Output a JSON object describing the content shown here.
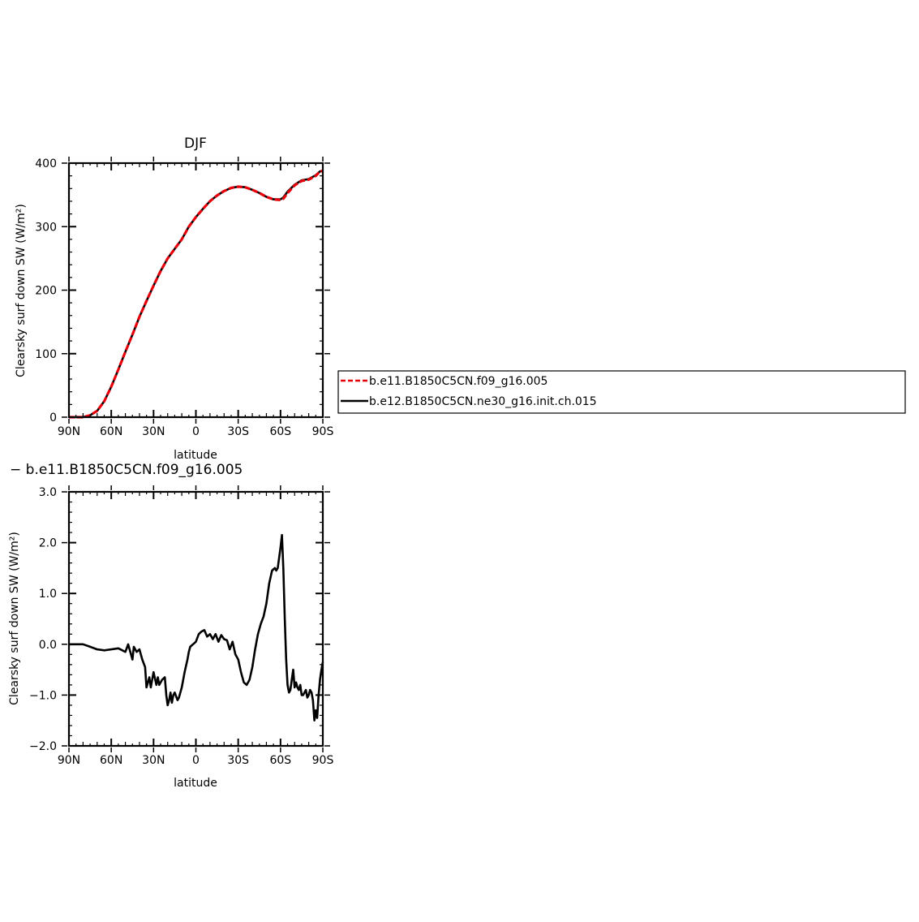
{
  "chart_data": [
    {
      "type": "line",
      "title": "DJF",
      "xlabel": "latitude",
      "ylabel": "Clearsky surf down SW (W/m²)",
      "xticks": [
        "90N",
        "60N",
        "30N",
        "0",
        "30S",
        "60S",
        "90S"
      ],
      "yticks": [
        "0",
        "100",
        "200",
        "300",
        "400"
      ],
      "xlim": [
        90,
        -90
      ],
      "ylim": [
        0,
        400
      ],
      "x": [
        90,
        85,
        80,
        75,
        70,
        65,
        60,
        55,
        50,
        45,
        40,
        35,
        30,
        25,
        20,
        15,
        10,
        5,
        0,
        -5,
        -10,
        -15,
        -20,
        -25,
        -30,
        -35,
        -40,
        -45,
        -50,
        -55,
        -60,
        -62,
        -65,
        -70,
        -75,
        -80,
        -85,
        -88,
        -90
      ],
      "series": [
        {
          "name": "b.e11.B1850C5CN.f09_g16.005",
          "color": "#e8000b",
          "dash": "dashed",
          "values": [
            0,
            0,
            0,
            3,
            10,
            25,
            48,
            75,
            103,
            130,
            158,
            183,
            207,
            230,
            250,
            265,
            280,
            300,
            315,
            328,
            340,
            349,
            356,
            361,
            363,
            362,
            358,
            353,
            347,
            343,
            342,
            344,
            353,
            365,
            372,
            374,
            380,
            387,
            388
          ]
        },
        {
          "name": "b.e12.B1850C5CN.ne30_g16.init.ch.015",
          "color": "#000000",
          "dash": "solid",
          "values": [
            0,
            0,
            0,
            3,
            10,
            25,
            48,
            75,
            103,
            130,
            158,
            183,
            207,
            230,
            250,
            265,
            280,
            300,
            315,
            328,
            340,
            349,
            356,
            361,
            363,
            362,
            358,
            353,
            347,
            343,
            343,
            346,
            355,
            366,
            373,
            375,
            381,
            387,
            388
          ]
        }
      ]
    },
    {
      "type": "line",
      "title": "− b.e11.B1850C5CN.f09_g16.005",
      "xlabel": "latitude",
      "ylabel": "Clearsky surf down SW (W/m²)",
      "xticks": [
        "90N",
        "60N",
        "30N",
        "0",
        "30S",
        "60S",
        "90S"
      ],
      "yticks": [
        "−2.0",
        "−1.0",
        "0.0",
        "1.0",
        "2.0",
        "3.0"
      ],
      "xlim": [
        90,
        -90
      ],
      "ylim": [
        -2,
        3
      ],
      "x": [
        90,
        80,
        75,
        70,
        65,
        60,
        55,
        50,
        48,
        45,
        44,
        42,
        40,
        38,
        36,
        35,
        33,
        32,
        30,
        28,
        27,
        26,
        24,
        22,
        21,
        20,
        19,
        18,
        17,
        16,
        15,
        13,
        12,
        10,
        8,
        6,
        5,
        4,
        2,
        0,
        -2,
        -4,
        -6,
        -8,
        -10,
        -12,
        -14,
        -16,
        -18,
        -20,
        -22,
        -24,
        -26,
        -28,
        -30,
        -32,
        -34,
        -36,
        -38,
        -40,
        -42,
        -44,
        -46,
        -48,
        -50,
        -52,
        -54,
        -56,
        -57,
        -58,
        -59,
        -60,
        -61,
        -62,
        -63,
        -64,
        -65,
        -66,
        -67,
        -68,
        -69,
        -70,
        -71,
        -72,
        -73,
        -74,
        -75,
        -76,
        -77,
        -78,
        -79,
        -80,
        -81,
        -82,
        -83,
        -84,
        -85,
        -86,
        -87,
        -88,
        -89,
        -90
      ],
      "series": [
        {
          "name": "",
          "color": "#000000",
          "dash": "solid",
          "values": [
            0.0,
            0.0,
            -0.05,
            -0.1,
            -0.12,
            -0.1,
            -0.08,
            -0.15,
            0.0,
            -0.3,
            -0.05,
            -0.15,
            -0.1,
            -0.3,
            -0.45,
            -0.85,
            -0.65,
            -0.85,
            -0.55,
            -0.8,
            -0.65,
            -0.8,
            -0.7,
            -0.65,
            -1.0,
            -1.2,
            -1.1,
            -0.95,
            -1.15,
            -1.0,
            -0.95,
            -1.1,
            -1.05,
            -0.85,
            -0.55,
            -0.3,
            -0.15,
            -0.05,
            0.0,
            0.05,
            0.2,
            0.25,
            0.28,
            0.15,
            0.2,
            0.1,
            0.2,
            0.05,
            0.18,
            0.1,
            0.08,
            -0.1,
            0.05,
            -0.2,
            -0.3,
            -0.55,
            -0.75,
            -0.8,
            -0.7,
            -0.45,
            -0.1,
            0.2,
            0.4,
            0.55,
            0.8,
            1.2,
            1.45,
            1.5,
            1.45,
            1.5,
            1.7,
            1.9,
            2.15,
            1.5,
            0.5,
            -0.3,
            -0.8,
            -0.95,
            -0.9,
            -0.7,
            -0.5,
            -0.85,
            -0.75,
            -0.85,
            -0.9,
            -0.8,
            -1.0,
            -1.0,
            -0.95,
            -0.9,
            -1.05,
            -1.0,
            -0.9,
            -0.95,
            -1.1,
            -1.5,
            -1.3,
            -1.45,
            -1.0,
            -0.7,
            -0.5,
            -0.35
          ]
        }
      ]
    }
  ],
  "legend": {
    "entries": [
      "b.e11.B1850C5CN.f09_g16.005",
      "b.e12.B1850C5CN.ne30_g16.init.ch.015"
    ]
  }
}
